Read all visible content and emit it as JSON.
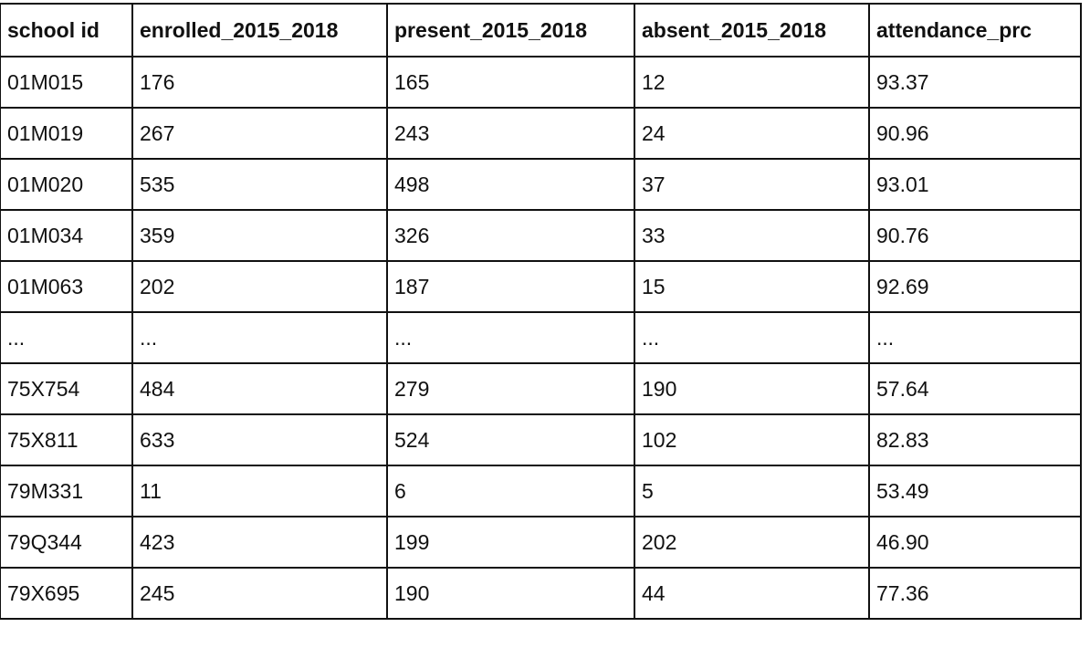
{
  "table": {
    "headers": [
      "school id",
      "enrolled_2015_2018",
      "present_2015_2018",
      "absent_2015_2018",
      "attendance_prc"
    ],
    "rows": [
      [
        "01M015",
        "176",
        "165",
        "12",
        "93.37"
      ],
      [
        "01M019",
        "267",
        "243",
        "24",
        "90.96"
      ],
      [
        "01M020",
        "535",
        "498",
        "37",
        "93.01"
      ],
      [
        "01M034",
        "359",
        "326",
        "33",
        "90.76"
      ],
      [
        "01M063",
        "202",
        "187",
        "15",
        "92.69"
      ],
      [
        "...",
        "...",
        "...",
        "...",
        "..."
      ],
      [
        "75X754",
        "484",
        "279",
        "190",
        "57.64"
      ],
      [
        "75X811",
        "633",
        "524",
        "102",
        "82.83"
      ],
      [
        "79M331",
        "11",
        "6",
        "5",
        "53.49"
      ],
      [
        "79Q344",
        "423",
        "199",
        "202",
        "46.90"
      ],
      [
        "79X695",
        "245",
        "190",
        "44",
        "77.36"
      ]
    ]
  }
}
